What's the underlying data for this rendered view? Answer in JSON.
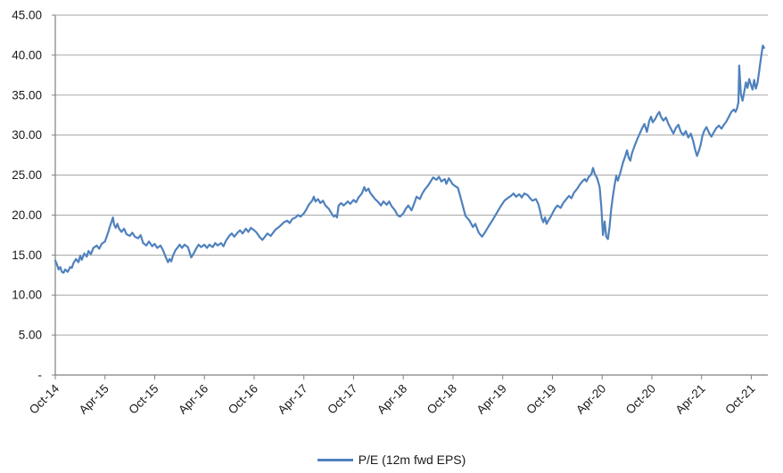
{
  "chart": {
    "title": "",
    "legend": {
      "label": "P/E (12m fwd EPS)"
    },
    "colors": {
      "line": "#4f81bd",
      "gridline": "#a6a6a6",
      "axis": "#808080",
      "text": "#1a1a1a"
    }
  },
  "chart_data": {
    "type": "line",
    "title": "",
    "xlabel": "",
    "ylabel": "",
    "grid": "horizontal",
    "legend_position": "bottom-center",
    "series_name": "P/E (12m fwd EPS)",
    "x_unit": "months since Oct-2014",
    "xlim_months": [
      0,
      86
    ],
    "x_tick_step_months": 6,
    "x_tick_labels": [
      "Oct-14",
      "Apr-15",
      "Oct-15",
      "Apr-16",
      "Oct-16",
      "Apr-17",
      "Oct-17",
      "Apr-18",
      "Oct-18",
      "Apr-19",
      "Oct-19",
      "Apr-20",
      "Oct-20",
      "Apr-21",
      "Oct-21"
    ],
    "ylim": [
      0,
      45
    ],
    "y_ticks": [
      0,
      5,
      10,
      15,
      20,
      25,
      30,
      35,
      40,
      45
    ],
    "y_tick_labels": [
      "-",
      "5.00",
      "10.00",
      "15.00",
      "20.00",
      "25.00",
      "30.00",
      "35.00",
      "40.00",
      "45.00"
    ],
    "points": [
      [
        0,
        14.3
      ],
      [
        0.2,
        13.8
      ],
      [
        0.4,
        13.2
      ],
      [
        0.6,
        13.5
      ],
      [
        0.8,
        12.9
      ],
      [
        1,
        12.8
      ],
      [
        1.2,
        13.2
      ],
      [
        1.5,
        12.9
      ],
      [
        1.8,
        13.5
      ],
      [
        2,
        13.4
      ],
      [
        2.2,
        14.0
      ],
      [
        2.5,
        14.5
      ],
      [
        2.8,
        14.1
      ],
      [
        3,
        14.9
      ],
      [
        3.2,
        14.4
      ],
      [
        3.5,
        15.2
      ],
      [
        3.8,
        14.8
      ],
      [
        4,
        15.5
      ],
      [
        4.3,
        15.1
      ],
      [
        4.6,
        15.9
      ],
      [
        5,
        16.2
      ],
      [
        5.3,
        15.8
      ],
      [
        5.6,
        16.4
      ],
      [
        6,
        16.7
      ],
      [
        6.2,
        17.3
      ],
      [
        6.4,
        17.9
      ],
      [
        6.6,
        18.6
      ],
      [
        6.8,
        19.2
      ],
      [
        6.95,
        19.7
      ],
      [
        7.1,
        18.8
      ],
      [
        7.3,
        18.4
      ],
      [
        7.5,
        18.9
      ],
      [
        7.7,
        18.3
      ],
      [
        8,
        17.9
      ],
      [
        8.3,
        18.3
      ],
      [
        8.6,
        17.6
      ],
      [
        9,
        17.4
      ],
      [
        9.3,
        17.8
      ],
      [
        9.6,
        17.3
      ],
      [
        10,
        17.1
      ],
      [
        10.3,
        17.5
      ],
      [
        10.6,
        16.5
      ],
      [
        11,
        16.2
      ],
      [
        11.3,
        16.7
      ],
      [
        11.7,
        16.1
      ],
      [
        12,
        16.4
      ],
      [
        12.3,
        15.9
      ],
      [
        12.7,
        16.2
      ],
      [
        13,
        15.6
      ],
      [
        13.3,
        14.8
      ],
      [
        13.6,
        14.1
      ],
      [
        13.8,
        14.5
      ],
      [
        14,
        14.2
      ],
      [
        14.2,
        14.9
      ],
      [
        14.5,
        15.6
      ],
      [
        14.8,
        16.0
      ],
      [
        15,
        16.3
      ],
      [
        15.3,
        15.9
      ],
      [
        15.6,
        16.3
      ],
      [
        16,
        16.0
      ],
      [
        16.2,
        15.4
      ],
      [
        16.4,
        14.7
      ],
      [
        16.7,
        15.2
      ],
      [
        17,
        15.8
      ],
      [
        17.3,
        16.3
      ],
      [
        17.6,
        16.0
      ],
      [
        18,
        16.3
      ],
      [
        18.3,
        15.9
      ],
      [
        18.6,
        16.3
      ],
      [
        19,
        16.0
      ],
      [
        19.3,
        16.5
      ],
      [
        19.6,
        16.2
      ],
      [
        20,
        16.5
      ],
      [
        20.3,
        16.1
      ],
      [
        20.6,
        16.8
      ],
      [
        21,
        17.4
      ],
      [
        21.3,
        17.7
      ],
      [
        21.6,
        17.3
      ],
      [
        22,
        17.8
      ],
      [
        22.3,
        18.1
      ],
      [
        22.6,
        17.7
      ],
      [
        23,
        18.3
      ],
      [
        23.3,
        17.9
      ],
      [
        23.6,
        18.4
      ],
      [
        24,
        18.1
      ],
      [
        24.3,
        17.8
      ],
      [
        24.7,
        17.2
      ],
      [
        25,
        16.9
      ],
      [
        25.3,
        17.3
      ],
      [
        25.6,
        17.7
      ],
      [
        26,
        17.4
      ],
      [
        26.3,
        17.8
      ],
      [
        26.6,
        18.2
      ],
      [
        27,
        18.5
      ],
      [
        27.3,
        18.8
      ],
      [
        27.6,
        19.1
      ],
      [
        28,
        19.3
      ],
      [
        28.3,
        19.0
      ],
      [
        28.6,
        19.5
      ],
      [
        29,
        19.7
      ],
      [
        29.3,
        20.0
      ],
      [
        29.6,
        19.8
      ],
      [
        30,
        20.2
      ],
      [
        30.3,
        20.7
      ],
      [
        30.6,
        21.3
      ],
      [
        31,
        21.8
      ],
      [
        31.2,
        22.3
      ],
      [
        31.4,
        21.7
      ],
      [
        31.7,
        22.0
      ],
      [
        32,
        21.5
      ],
      [
        32.3,
        21.8
      ],
      [
        32.6,
        21.2
      ],
      [
        33,
        20.8
      ],
      [
        33.3,
        20.3
      ],
      [
        33.6,
        19.8
      ],
      [
        33.8,
        20.0
      ],
      [
        34,
        19.7
      ],
      [
        34.2,
        21.2
      ],
      [
        34.5,
        21.5
      ],
      [
        34.8,
        21.2
      ],
      [
        35,
        21.4
      ],
      [
        35.3,
        21.7
      ],
      [
        35.6,
        21.4
      ],
      [
        36,
        21.9
      ],
      [
        36.3,
        21.6
      ],
      [
        36.6,
        22.2
      ],
      [
        37,
        22.7
      ],
      [
        37.3,
        23.5
      ],
      [
        37.5,
        23.0
      ],
      [
        37.8,
        23.3
      ],
      [
        38,
        22.8
      ],
      [
        38.3,
        22.4
      ],
      [
        38.6,
        22.0
      ],
      [
        39,
        21.6
      ],
      [
        39.3,
        21.2
      ],
      [
        39.6,
        21.7
      ],
      [
        40,
        21.3
      ],
      [
        40.3,
        21.7
      ],
      [
        40.6,
        21.1
      ],
      [
        41,
        20.6
      ],
      [
        41.3,
        20.0
      ],
      [
        41.6,
        19.8
      ],
      [
        42,
        20.2
      ],
      [
        42.3,
        20.8
      ],
      [
        42.6,
        21.2
      ],
      [
        43,
        20.6
      ],
      [
        43.3,
        21.4
      ],
      [
        43.6,
        22.3
      ],
      [
        44,
        22.0
      ],
      [
        44.3,
        22.7
      ],
      [
        44.6,
        23.2
      ],
      [
        45,
        23.7
      ],
      [
        45.3,
        24.2
      ],
      [
        45.6,
        24.7
      ],
      [
        46,
        24.4
      ],
      [
        46.3,
        24.8
      ],
      [
        46.6,
        24.2
      ],
      [
        47,
        24.5
      ],
      [
        47.2,
        23.9
      ],
      [
        47.5,
        24.6
      ],
      [
        47.8,
        24.1
      ],
      [
        48,
        23.8
      ],
      [
        48.6,
        23.4
      ],
      [
        49,
        21.9
      ],
      [
        49.5,
        19.9
      ],
      [
        50,
        19.3
      ],
      [
        50.4,
        18.5
      ],
      [
        50.7,
        18.9
      ],
      [
        51.1,
        17.8
      ],
      [
        51.5,
        17.3
      ],
      [
        51.9,
        17.9
      ],
      [
        52.3,
        18.6
      ],
      [
        52.8,
        19.4
      ],
      [
        53.3,
        20.3
      ],
      [
        53.7,
        21.0
      ],
      [
        54.2,
        21.8
      ],
      [
        54.7,
        22.2
      ],
      [
        55,
        22.4
      ],
      [
        55.3,
        22.7
      ],
      [
        55.6,
        22.3
      ],
      [
        56,
        22.6
      ],
      [
        56.3,
        22.2
      ],
      [
        56.6,
        22.7
      ],
      [
        57,
        22.5
      ],
      [
        57.3,
        22.1
      ],
      [
        57.6,
        21.8
      ],
      [
        58,
        22.0
      ],
      [
        58.3,
        21.4
      ],
      [
        58.5,
        20.6
      ],
      [
        58.7,
        19.6
      ],
      [
        58.9,
        19.1
      ],
      [
        59.1,
        19.7
      ],
      [
        59.3,
        18.9
      ],
      [
        59.5,
        19.3
      ],
      [
        59.8,
        19.8
      ],
      [
        60,
        20.2
      ],
      [
        60.3,
        20.8
      ],
      [
        60.6,
        21.2
      ],
      [
        61,
        20.9
      ],
      [
        61.3,
        21.5
      ],
      [
        61.6,
        21.9
      ],
      [
        62,
        22.4
      ],
      [
        62.3,
        22.1
      ],
      [
        62.6,
        22.8
      ],
      [
        63,
        23.3
      ],
      [
        63.3,
        23.8
      ],
      [
        63.6,
        24.2
      ],
      [
        63.9,
        24.5
      ],
      [
        64.1,
        24.2
      ],
      [
        64.4,
        24.8
      ],
      [
        64.7,
        25.1
      ],
      [
        64.9,
        25.9
      ],
      [
        65.1,
        25.2
      ],
      [
        65.4,
        24.6
      ],
      [
        65.7,
        23.5
      ],
      [
        65.9,
        21.0
      ],
      [
        66.1,
        17.5
      ],
      [
        66.3,
        19.2
      ],
      [
        66.5,
        17.3
      ],
      [
        66.7,
        17.0
      ],
      [
        66.9,
        18.5
      ],
      [
        67.1,
        20.8
      ],
      [
        67.3,
        22.4
      ],
      [
        67.5,
        23.7
      ],
      [
        67.7,
        24.9
      ],
      [
        67.9,
        24.3
      ],
      [
        68.2,
        25.3
      ],
      [
        68.5,
        26.5
      ],
      [
        68.8,
        27.4
      ],
      [
        69,
        28.1
      ],
      [
        69.2,
        27.2
      ],
      [
        69.4,
        26.8
      ],
      [
        69.6,
        27.7
      ],
      [
        69.9,
        28.6
      ],
      [
        70.2,
        29.4
      ],
      [
        70.5,
        30.1
      ],
      [
        70.8,
        30.8
      ],
      [
        71.1,
        31.4
      ],
      [
        71.4,
        30.4
      ],
      [
        71.7,
        31.8
      ],
      [
        71.9,
        32.3
      ],
      [
        72.1,
        31.6
      ],
      [
        72.4,
        32.0
      ],
      [
        72.7,
        32.6
      ],
      [
        72.9,
        32.9
      ],
      [
        73.1,
        32.3
      ],
      [
        73.4,
        31.8
      ],
      [
        73.7,
        32.2
      ],
      [
        74,
        31.4
      ],
      [
        74.3,
        30.8
      ],
      [
        74.6,
        30.2
      ],
      [
        74.9,
        30.9
      ],
      [
        75.2,
        31.3
      ],
      [
        75.5,
        30.4
      ],
      [
        75.8,
        30.0
      ],
      [
        76.1,
        30.5
      ],
      [
        76.4,
        29.7
      ],
      [
        76.7,
        30.2
      ],
      [
        77,
        29.2
      ],
      [
        77.2,
        28.3
      ],
      [
        77.45,
        27.4
      ],
      [
        77.7,
        28.1
      ],
      [
        77.9,
        28.8
      ],
      [
        78.1,
        29.9
      ],
      [
        78.35,
        30.6
      ],
      [
        78.6,
        31.0
      ],
      [
        78.9,
        30.3
      ],
      [
        79.2,
        29.8
      ],
      [
        79.5,
        30.4
      ],
      [
        79.8,
        30.9
      ],
      [
        80.1,
        31.2
      ],
      [
        80.4,
        30.8
      ],
      [
        80.7,
        31.3
      ],
      [
        81,
        31.7
      ],
      [
        81.3,
        32.3
      ],
      [
        81.6,
        32.9
      ],
      [
        81.9,
        33.2
      ],
      [
        82.1,
        32.9
      ],
      [
        82.3,
        33.4
      ],
      [
        82.45,
        34.1
      ],
      [
        82.55,
        38.7
      ],
      [
        82.75,
        35.1
      ],
      [
        82.95,
        34.3
      ],
      [
        83.15,
        35.4
      ],
      [
        83.35,
        36.6
      ],
      [
        83.55,
        35.9
      ],
      [
        83.75,
        37.0
      ],
      [
        83.95,
        36.3
      ],
      [
        84.15,
        35.7
      ],
      [
        84.35,
        36.9
      ],
      [
        84.55,
        35.8
      ],
      [
        84.75,
        36.5
      ],
      [
        84.95,
        37.9
      ],
      [
        85.1,
        39.1
      ],
      [
        85.25,
        40.2
      ],
      [
        85.4,
        41.2
      ],
      [
        85.55,
        40.9
      ]
    ]
  }
}
